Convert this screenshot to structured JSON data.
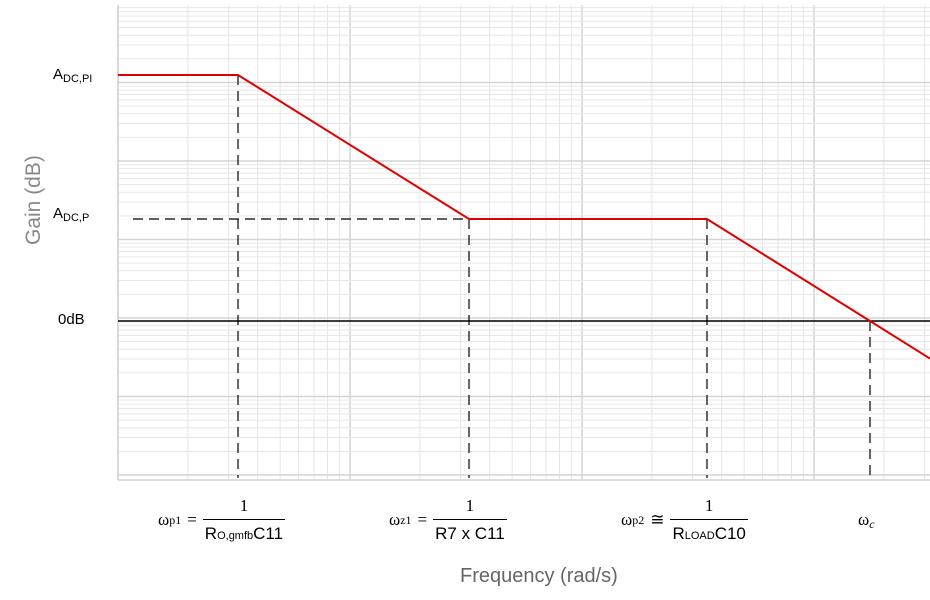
{
  "chart_data": {
    "type": "line",
    "title": "",
    "xlabel": "Frequency (rad/s)",
    "ylabel": "Gain (dB)",
    "x_scale": "log",
    "grid": true,
    "y_ticks": [
      {
        "main": "A",
        "sub": "DC,PI",
        "value": 0.97
      },
      {
        "main": "A",
        "sub": "DC,P",
        "value": 0.55
      },
      {
        "main": "0dB",
        "sub": "",
        "value": 0.28
      }
    ],
    "series": [
      {
        "color": "#e00000",
        "points": [
          {
            "x": "start",
            "y": "A_DC,PI"
          },
          {
            "x": "ω_p1",
            "y": "A_DC,PI"
          },
          {
            "x": "ω_z1",
            "y": "A_DC,P"
          },
          {
            "x": "ω_p2",
            "y": "A_DC,P"
          },
          {
            "x": "ω_c",
            "y": "0dB"
          }
        ]
      }
    ],
    "x_markers": [
      {
        "symbol": "ω",
        "sub": "p1",
        "op": "=",
        "numerator": "1",
        "den_pre": "R",
        "den_sub": "O,gmfb",
        "den_post": "C11"
      },
      {
        "symbol": "ω",
        "sub": "z1",
        "op": "=",
        "numerator": "1",
        "den_pre": "R7 x C11",
        "den_sub": "",
        "den_post": ""
      },
      {
        "symbol": "ω",
        "sub": "p2",
        "op": "≅",
        "numerator": "1",
        "den_pre": "R",
        "den_sub": "LOAD",
        "den_post": "C10"
      },
      {
        "symbol": "ω",
        "sub": "c",
        "op": "",
        "numerator": "",
        "den_pre": "",
        "den_sub": "",
        "den_post": ""
      }
    ],
    "colors": {
      "curve": "#e00000",
      "grid_major": "#d4d4d4",
      "grid_minor": "#e6e6e6",
      "guides": "#000000"
    }
  }
}
